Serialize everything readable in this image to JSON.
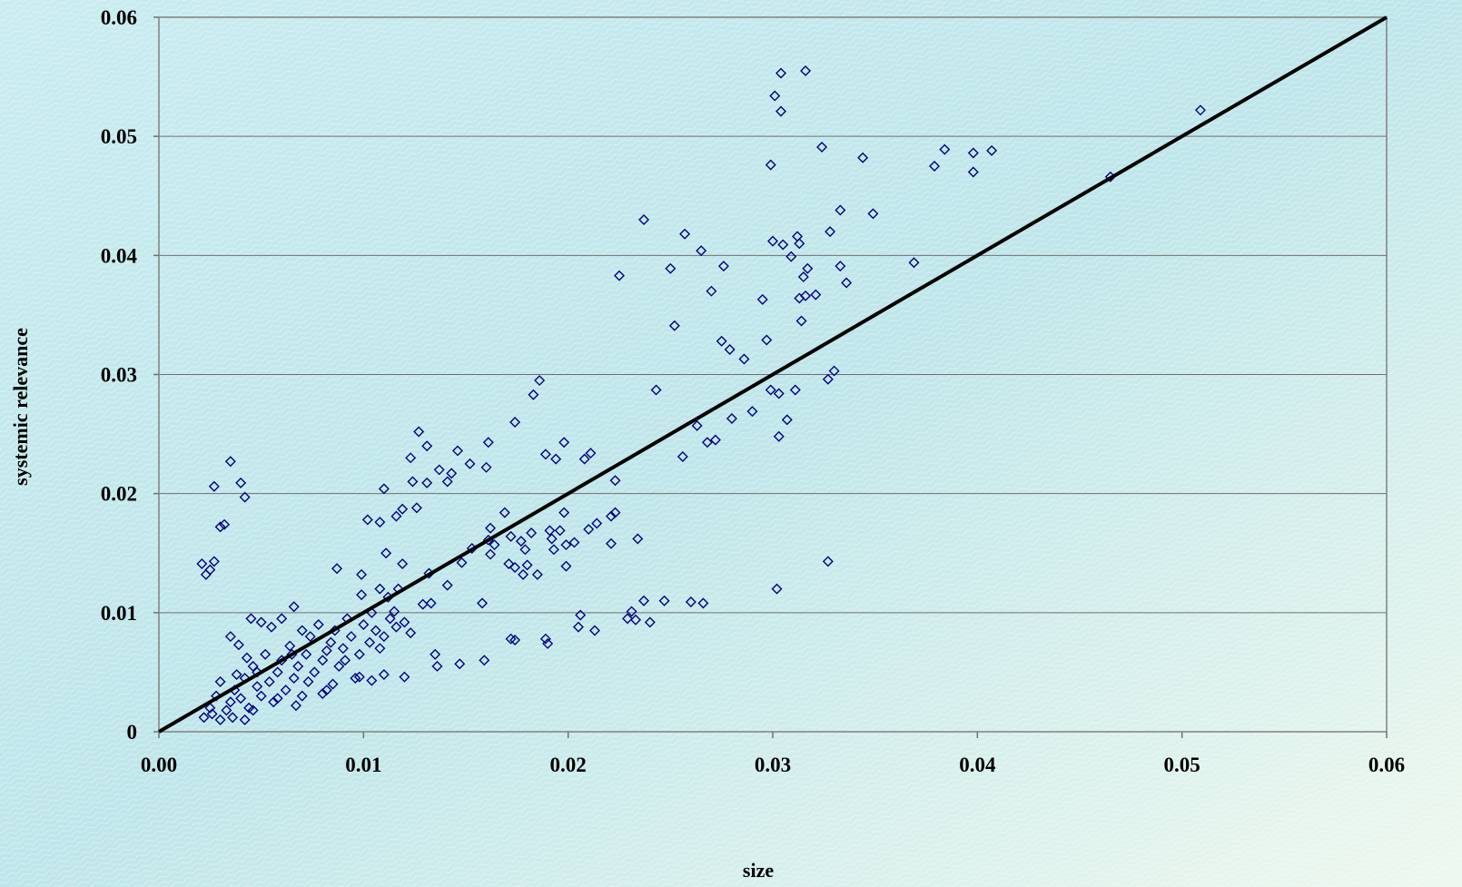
{
  "chart_data": {
    "type": "scatter",
    "x_label": "size",
    "y_label": "systemic relevance",
    "color": "#000080",
    "xlim": [
      0,
      0.06
    ],
    "ylim": [
      0,
      0.06
    ],
    "xticks": [
      {
        "value": 0,
        "label": "0.00"
      },
      0.01,
      0.02,
      0.03,
      0.04,
      0.05,
      0.06
    ],
    "yticks": [
      0,
      0.01,
      0.02,
      0.03,
      0.04,
      0.05,
      0.06
    ],
    "grid": true,
    "reference_line": {
      "x": [
        0,
        0.06
      ],
      "values": [
        0,
        0.06
      ],
      "color": "#000000"
    },
    "x": [
      0.0304,
      0.0316,
      0.0301,
      0.0304,
      0.0509,
      0.0324,
      0.0384,
      0.0407,
      0.0398,
      0.0344,
      0.0299,
      0.0379,
      0.0398,
      0.0465,
      0.0333,
      0.0349,
      0.0237,
      0.0328,
      0.0257,
      0.0312,
      0.03,
      0.0313,
      0.0305,
      0.0265,
      0.0309,
      0.0369,
      0.025,
      0.0276,
      0.0333,
      0.0317,
      0.0315,
      0.0225,
      0.0336,
      0.027,
      0.0316,
      0.0321,
      0.0313,
      0.0295,
      0.0314,
      0.0252,
      0.0275,
      0.0297,
      0.0279,
      0.0286,
      0.033,
      0.0327,
      0.0186,
      0.0311,
      0.0243,
      0.0299,
      0.0303,
      0.0183,
      0.029,
      0.0307,
      0.028,
      0.0263,
      0.0174,
      0.0127,
      0.0303,
      0.0272,
      0.0268,
      0.0161,
      0.0198,
      0.0131,
      0.0146,
      0.0189,
      0.0211,
      0.0256,
      0.0194,
      0.0208,
      0.0123,
      0.0035,
      0.0152,
      0.0137,
      0.016,
      0.0143,
      0.0124,
      0.0131,
      0.0223,
      0.0141,
      0.004,
      0.0027,
      0.011,
      0.0042,
      0.0126,
      0.0119,
      0.0223,
      0.0169,
      0.0198,
      0.0116,
      0.0221,
      0.0102,
      0.0108,
      0.0214,
      0.0032,
      0.003,
      0.0162,
      0.0191,
      0.0196,
      0.021,
      0.0182,
      0.0172,
      0.0192,
      0.0203,
      0.0234,
      0.0161,
      0.0177,
      0.0221,
      0.0199,
      0.0164,
      0.0179,
      0.0153,
      0.0193,
      0.0111,
      0.0162,
      0.0148,
      0.0027,
      0.0021,
      0.0327,
      0.0171,
      0.0119,
      0.018,
      0.0174,
      0.0199,
      0.0087,
      0.0025,
      0.0178,
      0.0185,
      0.0023,
      0.0132,
      0.0099,
      0.0141,
      0.0108,
      0.0302,
      0.0117,
      0.0099,
      0.0112,
      0.0158,
      0.0129,
      0.0133,
      0.0237,
      0.0247,
      0.026,
      0.0266,
      0.0066,
      0.0231,
      0.0115,
      0.0206,
      0.0229,
      0.0233,
      0.024,
      0.0205,
      0.0213,
      0.0189,
      0.0174,
      0.0172,
      0.019,
      0.0135,
      0.0136,
      0.0159,
      0.0147,
      0.012,
      0.011,
      0.0104,
      0.0098,
      0.0022,
      0.0025,
      0.0028,
      0.003,
      0.0033,
      0.0035,
      0.0037,
      0.004,
      0.0042,
      0.0044,
      0.0046,
      0.0048,
      0.005,
      0.0052,
      0.0054,
      0.0056,
      0.0058,
      0.006,
      0.0062,
      0.0064,
      0.0066,
      0.0068,
      0.007,
      0.0072,
      0.0074,
      0.0076,
      0.0078,
      0.008,
      0.0082,
      0.0084,
      0.0086,
      0.0088,
      0.009,
      0.0092,
      0.0094,
      0.0096,
      0.01,
      0.0103,
      0.0106,
      0.011,
      0.0113,
      0.0116,
      0.012,
      0.0035,
      0.0045,
      0.005,
      0.0055,
      0.006,
      0.003,
      0.0026,
      0.0036,
      0.0046,
      0.0058,
      0.0067,
      0.008,
      0.0038,
      0.0043,
      0.0065,
      0.0073,
      0.0085,
      0.0098,
      0.0104,
      0.0123,
      0.0042,
      0.0039,
      0.0048,
      0.007,
      0.0082,
      0.0091,
      0.0108
    ],
    "values": [
      0.0553,
      0.0555,
      0.0534,
      0.0521,
      0.0522,
      0.0491,
      0.0489,
      0.0488,
      0.0486,
      0.0482,
      0.0476,
      0.0475,
      0.047,
      0.0466,
      0.0438,
      0.0435,
      0.043,
      0.042,
      0.0418,
      0.0416,
      0.0412,
      0.041,
      0.0409,
      0.0404,
      0.0399,
      0.0394,
      0.0389,
      0.0391,
      0.0391,
      0.0389,
      0.0382,
      0.0383,
      0.0377,
      0.037,
      0.0366,
      0.0367,
      0.0364,
      0.0363,
      0.0345,
      0.0341,
      0.0328,
      0.0329,
      0.0321,
      0.0313,
      0.0303,
      0.0296,
      0.0295,
      0.0287,
      0.0287,
      0.0287,
      0.0284,
      0.0283,
      0.0269,
      0.0262,
      0.0263,
      0.0257,
      0.026,
      0.0252,
      0.0248,
      0.0245,
      0.0243,
      0.0243,
      0.0243,
      0.024,
      0.0236,
      0.0233,
      0.0234,
      0.0231,
      0.0229,
      0.0229,
      0.023,
      0.0227,
      0.0225,
      0.022,
      0.0222,
      0.0217,
      0.021,
      0.0209,
      0.0211,
      0.021,
      0.0209,
      0.0206,
      0.0204,
      0.0197,
      0.0188,
      0.0187,
      0.0184,
      0.0184,
      0.0184,
      0.0181,
      0.0181,
      0.0178,
      0.0176,
      0.0175,
      0.0174,
      0.0172,
      0.0171,
      0.0169,
      0.0169,
      0.017,
      0.0167,
      0.0164,
      0.0162,
      0.0159,
      0.0162,
      0.0161,
      0.016,
      0.0158,
      0.0157,
      0.0157,
      0.0153,
      0.0154,
      0.0153,
      0.015,
      0.0149,
      0.0142,
      0.0143,
      0.0141,
      0.0143,
      0.0141,
      0.0141,
      0.014,
      0.0138,
      0.0139,
      0.0137,
      0.0136,
      0.0132,
      0.0132,
      0.0132,
      0.0133,
      0.0132,
      0.0123,
      0.012,
      0.012,
      0.012,
      0.0115,
      0.0113,
      0.0108,
      0.0107,
      0.0108,
      0.011,
      0.011,
      0.0109,
      0.0108,
      0.0105,
      0.0101,
      0.0101,
      0.0098,
      0.0095,
      0.0094,
      0.0092,
      0.0088,
      0.0085,
      0.0078,
      0.0077,
      0.0078,
      0.0074,
      0.0065,
      0.0055,
      0.006,
      0.0057,
      0.0046,
      0.0048,
      0.0043,
      0.0046,
      0.0012,
      0.002,
      0.003,
      0.0042,
      0.0018,
      0.0025,
      0.0035,
      0.0028,
      0.0045,
      0.002,
      0.0055,
      0.0038,
      0.003,
      0.0065,
      0.0042,
      0.0025,
      0.005,
      0.006,
      0.0035,
      0.0072,
      0.0045,
      0.0055,
      0.003,
      0.0065,
      0.008,
      0.005,
      0.009,
      0.006,
      0.0035,
      0.0075,
      0.0085,
      0.0055,
      0.007,
      0.0095,
      0.008,
      0.0045,
      0.009,
      0.0075,
      0.0085,
      0.008,
      0.0095,
      0.0088,
      0.0092,
      0.008,
      0.0095,
      0.0092,
      0.0088,
      0.0095,
      0.001,
      0.0015,
      0.0012,
      0.0018,
      0.0028,
      0.0022,
      0.0032,
      0.0048,
      0.0062,
      0.0065,
      0.0042,
      0.004,
      0.0065,
      0.01,
      0.0083,
      0.001,
      0.0073,
      0.005,
      0.0085,
      0.0068,
      0.006,
      0.007
    ]
  }
}
